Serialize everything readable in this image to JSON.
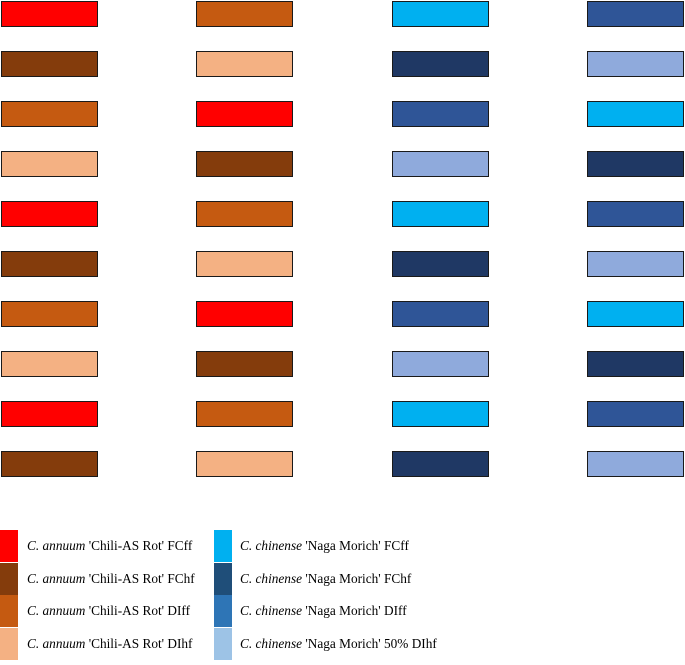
{
  "colors": {
    "red": "#ff0000",
    "dark_brown": "#843c0c",
    "orange_brown": "#c55a11",
    "peach": "#f4b183",
    "sky_blue": "#00b0f0",
    "navy": "#1f3864",
    "medium_blue": "#2f5597",
    "light_blue": "#8faadc"
  },
  "grid": {
    "columns": [
      [
        "red",
        "dark_brown",
        "orange_brown",
        "peach",
        "red",
        "dark_brown",
        "orange_brown",
        "peach",
        "red",
        "dark_brown"
      ],
      [
        "orange_brown",
        "peach",
        "red",
        "dark_brown",
        "orange_brown",
        "peach",
        "red",
        "dark_brown",
        "orange_brown",
        "peach"
      ],
      [
        "sky_blue",
        "navy",
        "medium_blue",
        "light_blue",
        "sky_blue",
        "navy",
        "medium_blue",
        "light_blue",
        "sky_blue",
        "navy"
      ],
      [
        "medium_blue",
        "light_blue",
        "sky_blue",
        "navy",
        "medium_blue",
        "light_blue",
        "sky_blue",
        "navy",
        "medium_blue",
        "light_blue"
      ]
    ]
  },
  "legend": {
    "left": [
      {
        "species": "C. annuum",
        "rest": " 'Chili-AS Rot' FCff",
        "color": "#ff0000"
      },
      {
        "species": "C. annuum",
        "rest": " 'Chili-AS Rot' FChf",
        "color": "#843c0c"
      },
      {
        "species": "C. annuum",
        "rest": " 'Chili-AS Rot' DIff",
        "color": "#c55a11"
      },
      {
        "species": "C. annuum",
        "rest": " 'Chili-AS Rot' DIhf",
        "color": "#f4b183"
      }
    ],
    "right": [
      {
        "species": "C. chinense",
        "rest": " 'Naga Morich' FCff",
        "color": "#00b0f0"
      },
      {
        "species": "C. chinense",
        "rest": " 'Naga Morich' FChf",
        "color": "#1f4e79"
      },
      {
        "species": "C. chinense",
        "rest": " 'Naga Morich' DIff",
        "color": "#2e75b6"
      },
      {
        "species": "C. chinense",
        "rest": " 'Naga Morich' 50% DIhf",
        "color": "#9dc3e6"
      }
    ]
  }
}
